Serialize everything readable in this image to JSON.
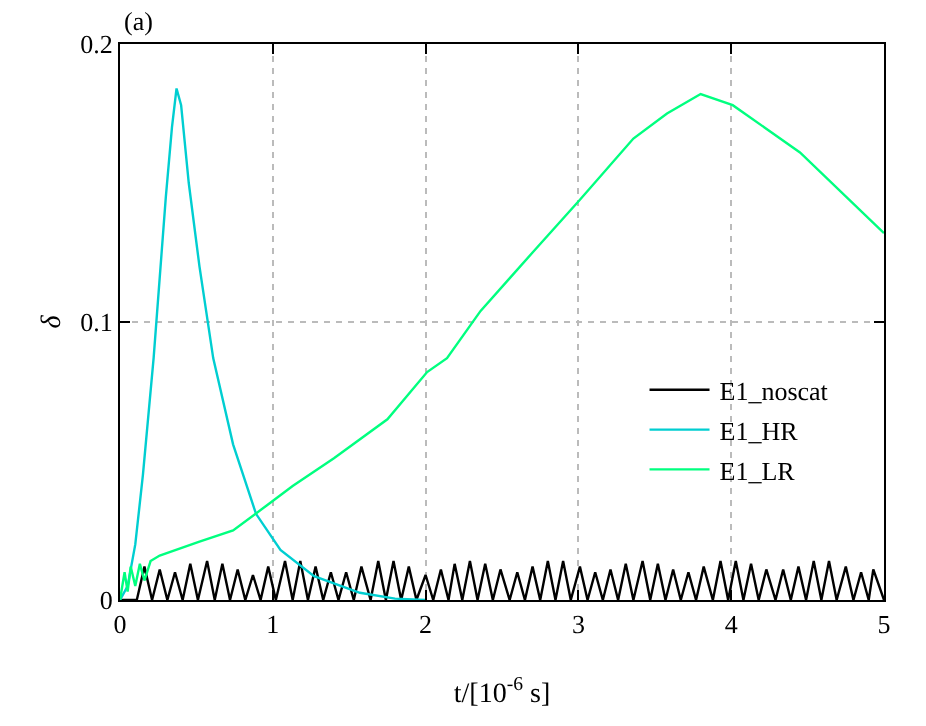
{
  "chart_data": {
    "type": "line",
    "xlabel": "t/[10$^{-6}$ s]",
    "ylabel": "δ",
    "annotations": [
      "(a)"
    ],
    "xlim": [
      0,
      5
    ],
    "ylim": [
      0,
      0.2
    ],
    "xticks": [
      0,
      1,
      2,
      3,
      4,
      5
    ],
    "yticks": [
      0,
      0.1,
      0.2
    ],
    "grid": true,
    "legend": "bottom right",
    "marker": "none",
    "line_style": "solid",
    "series": [
      {
        "name": "E1_noscat",
        "color": "#000000",
        "x": [
          0,
          0.11,
          0.16,
          0.21,
          0.26,
          0.31,
          0.36,
          0.41,
          0.46,
          0.51,
          0.57,
          0.62,
          0.67,
          0.72,
          0.77,
          0.82,
          0.87,
          0.92,
          0.97,
          1.02,
          1.08,
          1.13,
          1.18,
          1.23,
          1.28,
          1.33,
          1.38,
          1.43,
          1.48,
          1.53,
          1.58,
          1.64,
          1.69,
          1.74,
          1.79,
          1.84,
          1.89,
          1.94,
          2.0,
          2.05,
          2.1,
          2.15,
          2.19,
          2.24,
          2.29,
          2.34,
          2.39,
          2.44,
          2.49,
          2.55,
          2.6,
          2.65,
          2.7,
          2.75,
          2.8,
          2.85,
          2.9,
          2.95,
          3.01,
          3.06,
          3.11,
          3.16,
          3.21,
          3.26,
          3.31,
          3.36,
          3.42,
          3.47,
          3.52,
          3.57,
          3.62,
          3.67,
          3.72,
          3.77,
          3.82,
          3.88,
          3.93,
          3.98,
          4.03,
          4.08,
          4.13,
          4.18,
          4.23,
          4.29,
          4.34,
          4.39,
          4.44,
          4.49,
          4.54,
          4.59,
          4.64,
          4.69,
          4.75,
          4.8,
          4.85,
          4.9,
          4.93,
          5.0
        ],
        "values": [
          0,
          0,
          0.012,
          0,
          0.011,
          0,
          0.01,
          0,
          0.013,
          0,
          0.014,
          0,
          0.013,
          0,
          0.011,
          0,
          0.009,
          0,
          0.012,
          0,
          0.014,
          0,
          0.014,
          0,
          0.012,
          0,
          0.01,
          0,
          0.01,
          0,
          0.012,
          0,
          0.014,
          0,
          0.014,
          0,
          0.012,
          0,
          0.009,
          0,
          0.011,
          0,
          0.013,
          0,
          0.014,
          0,
          0.013,
          0,
          0.011,
          0,
          0.01,
          0,
          0.012,
          0,
          0.014,
          0,
          0.014,
          0,
          0.012,
          0,
          0.01,
          0,
          0.011,
          0,
          0.013,
          0,
          0.014,
          0,
          0.013,
          0,
          0.011,
          0,
          0.01,
          0,
          0.012,
          0,
          0.014,
          0,
          0.014,
          0,
          0.013,
          0,
          0.011,
          0,
          0.011,
          0,
          0.012,
          0,
          0.014,
          0,
          0.014,
          0,
          0.012,
          0,
          0.01,
          0,
          0.011,
          0
        ]
      },
      {
        "name": "E1_HR",
        "color": "#00ced1",
        "x": [
          0,
          0.05,
          0.1,
          0.15,
          0.22,
          0.3,
          0.34,
          0.37,
          0.4,
          0.45,
          0.52,
          0.61,
          0.74,
          0.89,
          1.05,
          1.27,
          1.57,
          1.8,
          2.0
        ],
        "values": [
          0,
          0.005,
          0.02,
          0.045,
          0.087,
          0.145,
          0.17,
          0.184,
          0.178,
          0.15,
          0.12,
          0.087,
          0.056,
          0.031,
          0.018,
          0.0086,
          0.0026,
          0.0005,
          0
        ]
      },
      {
        "name": "E1_LR",
        "color": "#00ff7f",
        "x": [
          0,
          0.03,
          0.05,
          0.07,
          0.1,
          0.13,
          0.16,
          0.2,
          0.26,
          0.52,
          0.74,
          0.96,
          1.13,
          1.4,
          1.75,
          2.01,
          2.14,
          2.36,
          2.7,
          3.01,
          3.36,
          3.58,
          3.8,
          4.01,
          4.45,
          5.0
        ],
        "values": [
          0,
          0.01,
          0.003,
          0.012,
          0.005,
          0.013,
          0.007,
          0.014,
          0.016,
          0.021,
          0.025,
          0.034,
          0.041,
          0.051,
          0.065,
          0.082,
          0.087,
          0.104,
          0.125,
          0.144,
          0.166,
          0.175,
          0.182,
          0.178,
          0.161,
          0.132
        ]
      }
    ]
  }
}
